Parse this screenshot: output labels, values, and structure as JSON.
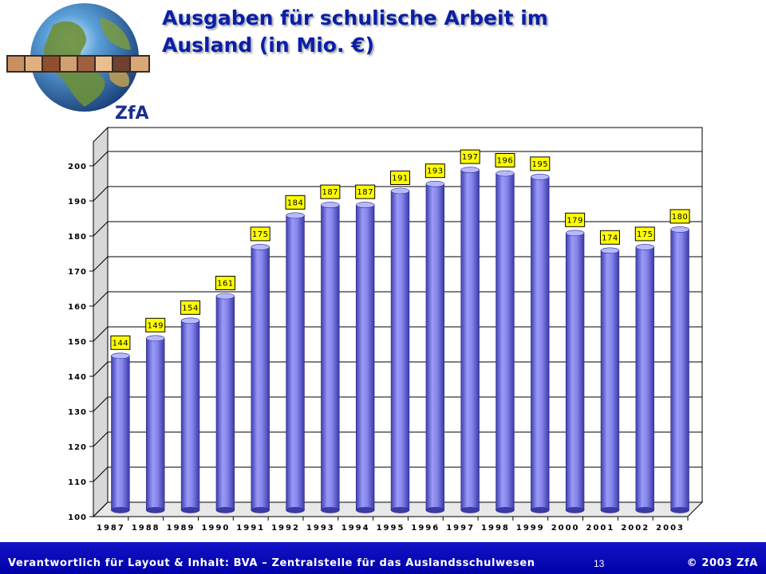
{
  "header": {
    "title_line1": "Ausgaben für schulische Arbeit im",
    "title_line2": "Ausland (in Mio. €)",
    "logo_text": "ZfA",
    "logo_icon": "globe-icon"
  },
  "chart_data": {
    "type": "bar",
    "categories": [
      "1987",
      "1988",
      "1989",
      "1990",
      "1991",
      "1992",
      "1993",
      "1994",
      "1995",
      "1996",
      "1997",
      "1998",
      "1999",
      "2000",
      "2001",
      "2002",
      "2003"
    ],
    "values": [
      144,
      149,
      154,
      161,
      175,
      184,
      187,
      187,
      191,
      193,
      197,
      196,
      195,
      179,
      174,
      175,
      180
    ],
    "data_labels": [
      "144",
      "149",
      "154",
      "161",
      "175",
      "184",
      "187",
      "187",
      "191",
      "193",
      "197",
      "196",
      "195",
      "179",
      "174",
      "175",
      "180"
    ],
    "yticks": [
      "100",
      "110",
      "120",
      "130",
      "140",
      "150",
      "160",
      "170",
      "180",
      "190",
      "200"
    ],
    "ylim": [
      100,
      200
    ],
    "grid": true,
    "bar_style": "3d-cylinder",
    "colors": {
      "bar": "#8c8cf0",
      "bar_dark": "#3e3eb0",
      "label_bg": "#ffff00"
    }
  },
  "footer": {
    "left": "Verantwortlich für Layout & Inhalt: BVA – Zentralstelle für das Auslandsschulwesen",
    "page": "13",
    "right": "© 2003 ZfA"
  }
}
